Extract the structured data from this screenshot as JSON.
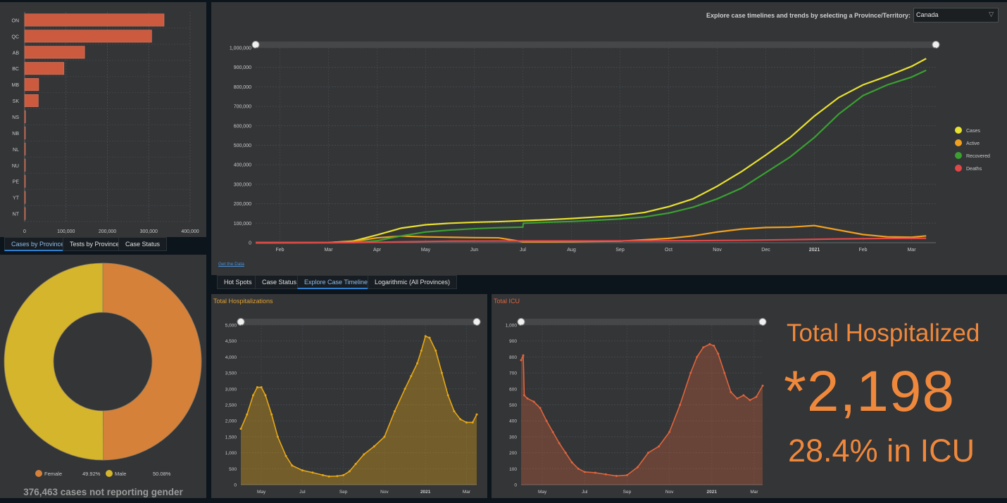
{
  "province_bar": {
    "tabs": [
      "Cases by Province",
      "Tests by Province",
      "Case Status"
    ],
    "chart_data": {
      "type": "bar",
      "orientation": "horizontal",
      "categories": [
        "ON",
        "QC",
        "AB",
        "BC",
        "MB",
        "SK",
        "NS",
        "NB",
        "NL",
        "NU",
        "PE",
        "YT",
        "NT"
      ],
      "values": [
        337000,
        307000,
        145000,
        95000,
        34000,
        33000,
        2000,
        1500,
        1000,
        400,
        150,
        75,
        45
      ],
      "xlim": [
        0,
        400000
      ],
      "xticks": [
        "0",
        "100,000",
        "200,000",
        "300,000",
        "400,000"
      ],
      "grid": true,
      "color": "#cc5a3f"
    }
  },
  "gender_donut": {
    "chart_data": {
      "type": "pie",
      "donut": true,
      "labels": [
        "Female",
        "Male"
      ],
      "values": [
        49.92,
        50.08
      ],
      "display_values": [
        "49.92%",
        "50.08%"
      ],
      "colors": [
        "#d6813a",
        "#d4b52c"
      ]
    },
    "note": "376,463 cases not reporting gender"
  },
  "timeline": {
    "explore_label": "Explore case timelines and trends by selecting a Province/Territory:",
    "province_select": "Canada",
    "get_data": "Get the Data",
    "tabs": [
      "Hot Spots",
      "Case Status",
      "Explore Case Timelines",
      "Logarithmic (All Provinces)"
    ],
    "chart_data": {
      "type": "line",
      "x_labels": [
        "Feb",
        "Mar",
        "Apr",
        "May",
        "Jun",
        "Jul",
        "Aug",
        "Sep",
        "Oct",
        "Nov",
        "Dec",
        "2021",
        "Feb",
        "Mar"
      ],
      "x_label_pos": [
        0.5,
        1.5,
        2.5,
        3.5,
        4.5,
        5.5,
        6.5,
        7.5,
        8.5,
        9.5,
        10.5,
        11.5,
        12.5,
        13.5
      ],
      "ylim": [
        0,
        1000000
      ],
      "yticks": [
        "0",
        "100,000",
        "200,000",
        "300,000",
        "400,000",
        "500,000",
        "600,000",
        "700,000",
        "800,000",
        "900,000",
        "1,000,000"
      ],
      "series": [
        {
          "name": "Cases",
          "color": "#e8e030",
          "x": [
            0,
            1.5,
            2.0,
            2.5,
            3.0,
            3.5,
            4.0,
            4.5,
            5.0,
            5.5,
            6.0,
            6.5,
            7.0,
            7.5,
            8.0,
            8.5,
            9.0,
            9.5,
            10.0,
            10.5,
            11.0,
            11.5,
            12.0,
            12.5,
            13.0,
            13.5,
            13.8
          ],
          "y": [
            0,
            500,
            8000,
            40000,
            75000,
            92000,
            100000,
            105000,
            108000,
            113000,
            118000,
            124000,
            132000,
            140000,
            155000,
            185000,
            225000,
            290000,
            365000,
            450000,
            540000,
            650000,
            745000,
            810000,
            855000,
            905000,
            945000
          ]
        },
        {
          "name": "Active",
          "color": "#f0a020",
          "x": [
            0,
            1.5,
            2.0,
            2.5,
            3.0,
            3.5,
            4.0,
            4.5,
            5.0,
            5.5,
            6.0,
            6.5,
            7.0,
            7.5,
            8.0,
            8.5,
            9.0,
            9.5,
            10.0,
            10.5,
            11.0,
            11.5,
            12.0,
            12.5,
            13.0,
            13.5,
            13.8
          ],
          "y": [
            0,
            400,
            6000,
            25000,
            34000,
            30000,
            28000,
            26000,
            25000,
            5000,
            5000,
            6000,
            7000,
            8000,
            15000,
            22000,
            35000,
            55000,
            70000,
            78000,
            80000,
            88000,
            65000,
            42000,
            30000,
            28000,
            35000
          ]
        },
        {
          "name": "Recovered",
          "color": "#3aa030",
          "x": [
            0,
            1.5,
            2.0,
            2.5,
            3.0,
            3.5,
            4.0,
            4.5,
            5.0,
            5.5,
            5.51,
            6.0,
            6.5,
            7.0,
            7.5,
            8.0,
            8.5,
            9.0,
            9.5,
            10.0,
            10.5,
            11.0,
            11.5,
            12.0,
            12.5,
            13.0,
            13.5,
            13.8
          ],
          "y": [
            0,
            0,
            1000,
            10000,
            35000,
            55000,
            65000,
            72000,
            77000,
            80000,
            100000,
            105000,
            109000,
            115000,
            122000,
            132000,
            152000,
            182000,
            225000,
            280000,
            360000,
            440000,
            540000,
            660000,
            755000,
            810000,
            850000,
            885000
          ]
        },
        {
          "name": "Deaths",
          "color": "#e04848",
          "x": [
            0,
            1.5,
            2.0,
            2.5,
            3.0,
            3.5,
            4.0,
            5.0,
            6.0,
            7.0,
            8.0,
            9.0,
            10.0,
            11.0,
            12.0,
            13.0,
            13.8
          ],
          "y": [
            0,
            0,
            500,
            2000,
            4500,
            6500,
            8000,
            8800,
            9000,
            9200,
            9500,
            10500,
            12500,
            15500,
            19500,
            21800,
            22500
          ]
        }
      ],
      "legend": "right",
      "grid": true
    }
  },
  "hospitalizations": {
    "title": "Total Hospitalizations",
    "chart_data": {
      "type": "area",
      "color": "#e8a818",
      "x_labels": [
        "May",
        "Jul",
        "Sep",
        "Nov",
        "2021",
        "Mar"
      ],
      "x_label_pos": [
        1,
        3,
        5,
        7,
        9,
        11
      ],
      "ylim": [
        0,
        5000
      ],
      "yticks": [
        "0",
        "500",
        "1,000",
        "1,500",
        "2,000",
        "2,500",
        "3,000",
        "3,500",
        "4,000",
        "4,500",
        "5,000"
      ],
      "x": [
        0,
        0.3,
        0.6,
        0.8,
        1.0,
        1.2,
        1.5,
        1.8,
        2.2,
        2.5,
        3.0,
        3.5,
        4.0,
        4.3,
        4.7,
        5.0,
        5.3,
        5.6,
        6.0,
        6.5,
        7.0,
        7.5,
        8.0,
        8.3,
        8.6,
        8.8,
        9.0,
        9.2,
        9.5,
        9.8,
        10.1,
        10.4,
        10.7,
        11.0,
        11.3,
        11.5
      ],
      "y": [
        1750,
        2200,
        2800,
        3050,
        3050,
        2800,
        2200,
        1500,
        900,
        600,
        450,
        380,
        300,
        260,
        270,
        300,
        420,
        650,
        950,
        1200,
        1500,
        2300,
        3000,
        3400,
        3800,
        4200,
        4650,
        4600,
        4200,
        3500,
        2800,
        2300,
        2050,
        1950,
        1950,
        2200
      ]
    }
  },
  "icu": {
    "title": "Total ICU",
    "chart_data": {
      "type": "area",
      "color": "#e0643c",
      "x_labels": [
        "May",
        "Jul",
        "Sep",
        "Nov",
        "2021",
        "Mar"
      ],
      "x_label_pos": [
        1,
        3,
        5,
        7,
        9,
        11
      ],
      "ylim": [
        0,
        1000
      ],
      "yticks": [
        "0",
        "100",
        "200",
        "300",
        "400",
        "500",
        "600",
        "700",
        "800",
        "900",
        "1,000"
      ],
      "x": [
        0,
        0.1,
        0.15,
        0.3,
        0.6,
        0.9,
        1.2,
        1.5,
        1.8,
        2.1,
        2.4,
        2.7,
        3.0,
        3.5,
        4.0,
        4.5,
        5.0,
        5.5,
        6.0,
        6.5,
        7.0,
        7.5,
        8.0,
        8.3,
        8.6,
        8.9,
        9.1,
        9.3,
        9.6,
        9.9,
        10.2,
        10.5,
        10.8,
        11.1,
        11.4
      ],
      "y": [
        780,
        810,
        560,
        540,
        520,
        480,
        400,
        330,
        260,
        200,
        140,
        100,
        80,
        75,
        65,
        55,
        60,
        110,
        200,
        240,
        330,
        500,
        700,
        800,
        860,
        880,
        870,
        820,
        700,
        580,
        540,
        560,
        530,
        550,
        620
      ]
    }
  },
  "summary": {
    "title": "Total Hospitalized",
    "star": "*",
    "value": "2,198",
    "icu_share": "28.4% in ICU"
  }
}
